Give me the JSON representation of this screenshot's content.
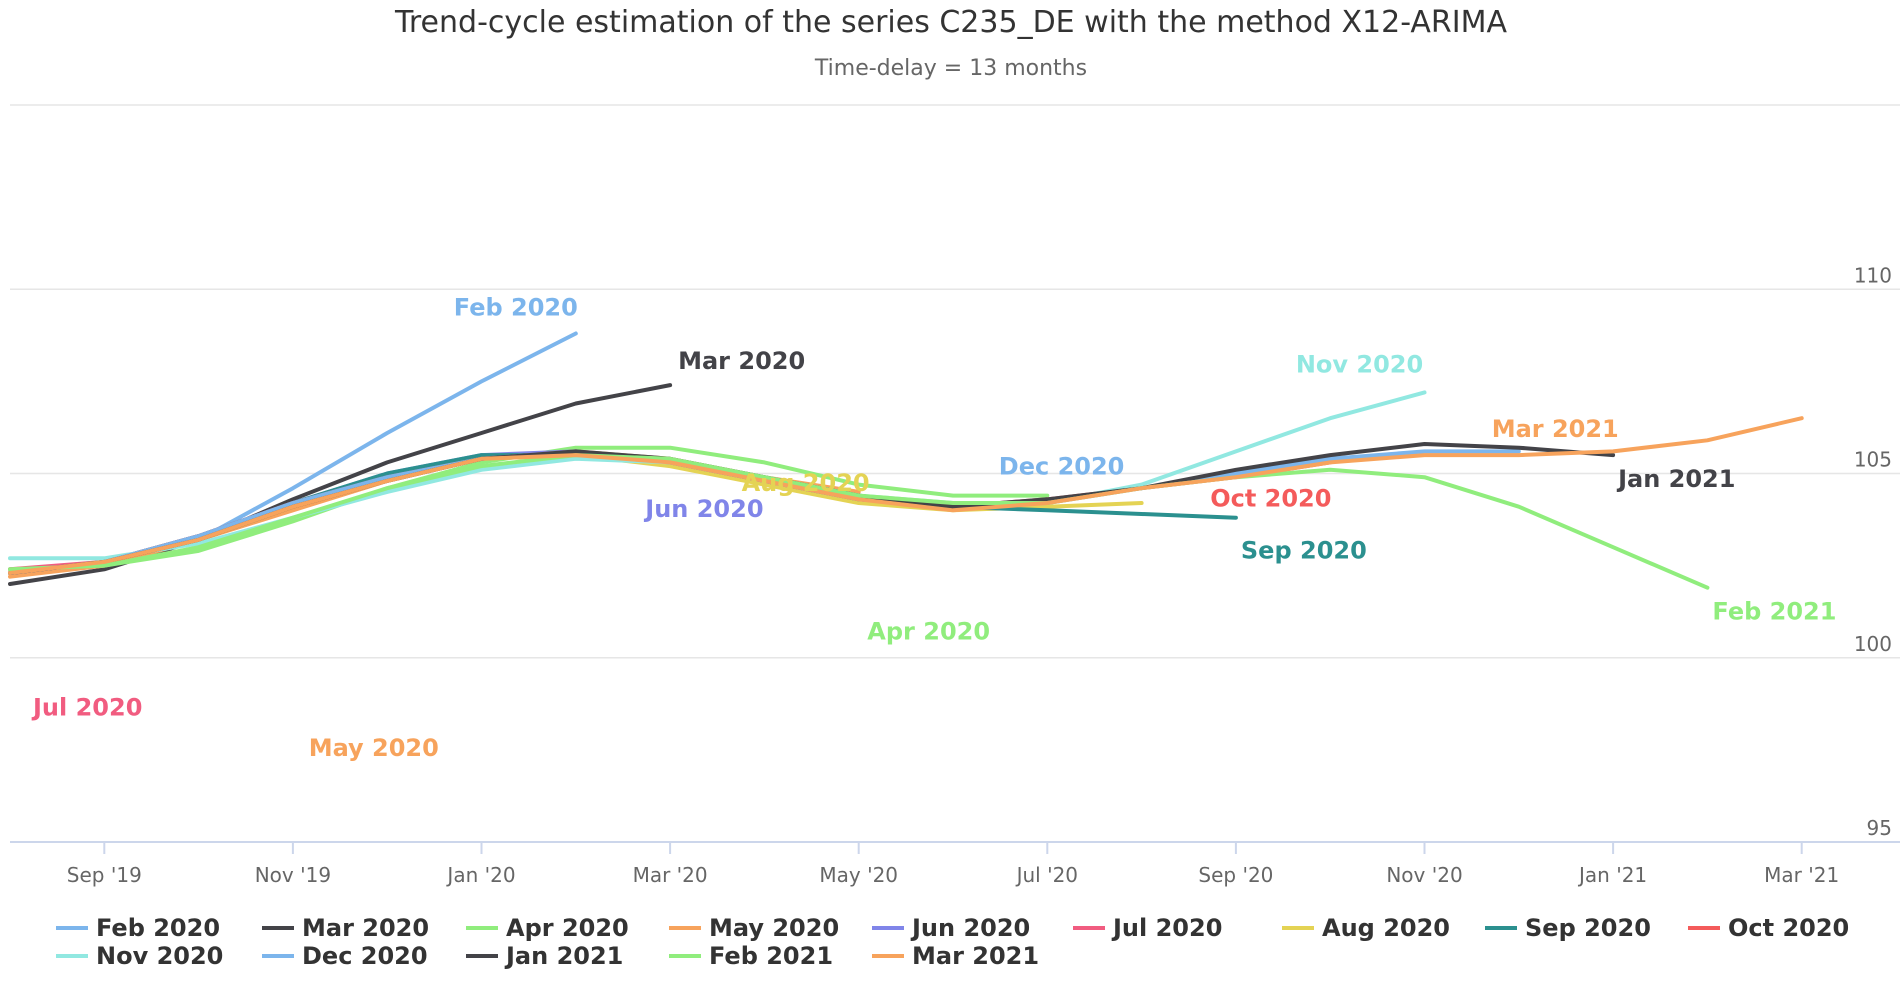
{
  "chart_data": {
    "type": "line",
    "title": "Trend-cycle estimation of the series C235_DE with the method X12-ARIMA",
    "subtitle": "Time-delay = 13 months",
    "ylim": [
      95,
      115
    ],
    "yticks": [
      "95",
      "100",
      "105",
      "110"
    ],
    "xticks": [
      "Sep '19",
      "Nov '19",
      "Jan '20",
      "Mar '20",
      "May '20",
      "Jul '20",
      "Sep '20",
      "Nov '20",
      "Jan '21",
      "Mar '21"
    ],
    "x_start": "2019-08",
    "grid": true,
    "legend_position": "bottom",
    "series": [
      {
        "name": "Feb 2020",
        "label": "Feb 2020",
        "color": "#7cb5ec",
        "start": 0,
        "values": [
          102.3,
          102.6,
          103.2,
          104.6,
          106.1,
          107.5,
          108.8
        ]
      },
      {
        "name": "Mar 2020",
        "label": "Mar 2020",
        "color": "#434348",
        "start": 0,
        "values": [
          102.0,
          102.4,
          103.2,
          104.3,
          105.3,
          106.1,
          106.9,
          107.4
        ]
      },
      {
        "name": "Apr 2020",
        "label": "Apr 2020",
        "color": "#90ed7d",
        "start": 0,
        "values": [
          102.4,
          102.5,
          102.9,
          103.7,
          104.6,
          105.3,
          105.7,
          105.7,
          105.3,
          104.7,
          104.4,
          104.4
        ]
      },
      {
        "name": "May 2020",
        "label": "May 2020",
        "color": "#f7a35c",
        "start": 0,
        "values": [
          102.2,
          102.5,
          103.2,
          104.0,
          104.8,
          105.4,
          105.6,
          105.4,
          104.9,
          104.5
        ]
      },
      {
        "name": "Jun 2020",
        "label": "Jun 2020",
        "color": "#8085e9",
        "start": 0,
        "values": [
          102.3,
          102.6,
          103.3,
          104.2,
          105.0,
          105.5,
          105.6,
          105.3,
          104.8
        ]
      },
      {
        "name": "Jul 2020",
        "label": "Jul 2020",
        "color": "#f15c80",
        "start": 0,
        "values": [
          102.4,
          102.6,
          103.3,
          104.2,
          104.9,
          105.4,
          105.6,
          105.3,
          104.8,
          104.3,
          104.1
        ]
      },
      {
        "name": "Aug 2020",
        "label": "Aug 2020",
        "color": "#e4d354",
        "start": 0,
        "values": [
          102.3,
          102.6,
          103.2,
          104.1,
          104.9,
          105.4,
          105.5,
          105.2,
          104.7,
          104.2,
          104.0,
          104.1,
          104.2
        ]
      },
      {
        "name": "Sep 2020",
        "label": "Sep 2020",
        "color": "#2b908f",
        "start": 0,
        "values": [
          102.3,
          102.6,
          103.3,
          104.2,
          105.0,
          105.5,
          105.5,
          105.3,
          104.8,
          104.3,
          104.1,
          104.0,
          103.9,
          103.8
        ]
      },
      {
        "name": "Oct 2020",
        "label": "Oct 2020",
        "color": "#f45b5b",
        "start": 0,
        "values": [
          102.3,
          102.6,
          103.3,
          104.2,
          104.9,
          105.4,
          105.6,
          105.3,
          104.8,
          104.3,
          104.1,
          104.3,
          104.6,
          104.9,
          105.3
        ]
      },
      {
        "name": "Nov 2020",
        "label": "Nov 2020",
        "color": "#91e8e1",
        "start": 0,
        "values": [
          102.7,
          102.7,
          103.1,
          103.8,
          104.5,
          105.1,
          105.4,
          105.3,
          104.9,
          104.4,
          104.2,
          104.2,
          104.7,
          105.6,
          106.5,
          107.2
        ]
      },
      {
        "name": "Dec 2020",
        "label": "Dec 2020",
        "color": "#7cb5ec",
        "start": 0,
        "values": [
          102.3,
          102.6,
          103.3,
          104.2,
          104.9,
          105.4,
          105.6,
          105.3,
          104.8,
          104.3,
          104.1,
          104.2,
          104.6,
          105.0,
          105.4,
          105.6,
          105.6
        ]
      },
      {
        "name": "Jan 2021",
        "label": "Jan 2021",
        "color": "#434348",
        "start": 0,
        "values": [
          102.3,
          102.6,
          103.2,
          104.1,
          104.8,
          105.4,
          105.6,
          105.4,
          104.9,
          104.4,
          104.1,
          104.3,
          104.6,
          105.1,
          105.5,
          105.8,
          105.7,
          105.5
        ]
      },
      {
        "name": "Feb 2021",
        "label": "Feb 2021",
        "color": "#90ed7d",
        "start": 0,
        "values": [
          102.4,
          102.5,
          103.0,
          103.8,
          104.6,
          105.2,
          105.5,
          105.4,
          104.9,
          104.4,
          104.2,
          104.2,
          104.6,
          104.9,
          105.1,
          104.9,
          104.1,
          103.0,
          101.9
        ]
      },
      {
        "name": "Mar 2021",
        "label": "Mar 2021",
        "color": "#f7a35c",
        "start": 0,
        "values": [
          102.3,
          102.6,
          103.2,
          104.1,
          104.8,
          105.4,
          105.5,
          105.3,
          104.8,
          104.3,
          104.0,
          104.2,
          104.6,
          104.9,
          105.3,
          105.5,
          105.5,
          105.6,
          105.9,
          106.5
        ]
      }
    ]
  }
}
